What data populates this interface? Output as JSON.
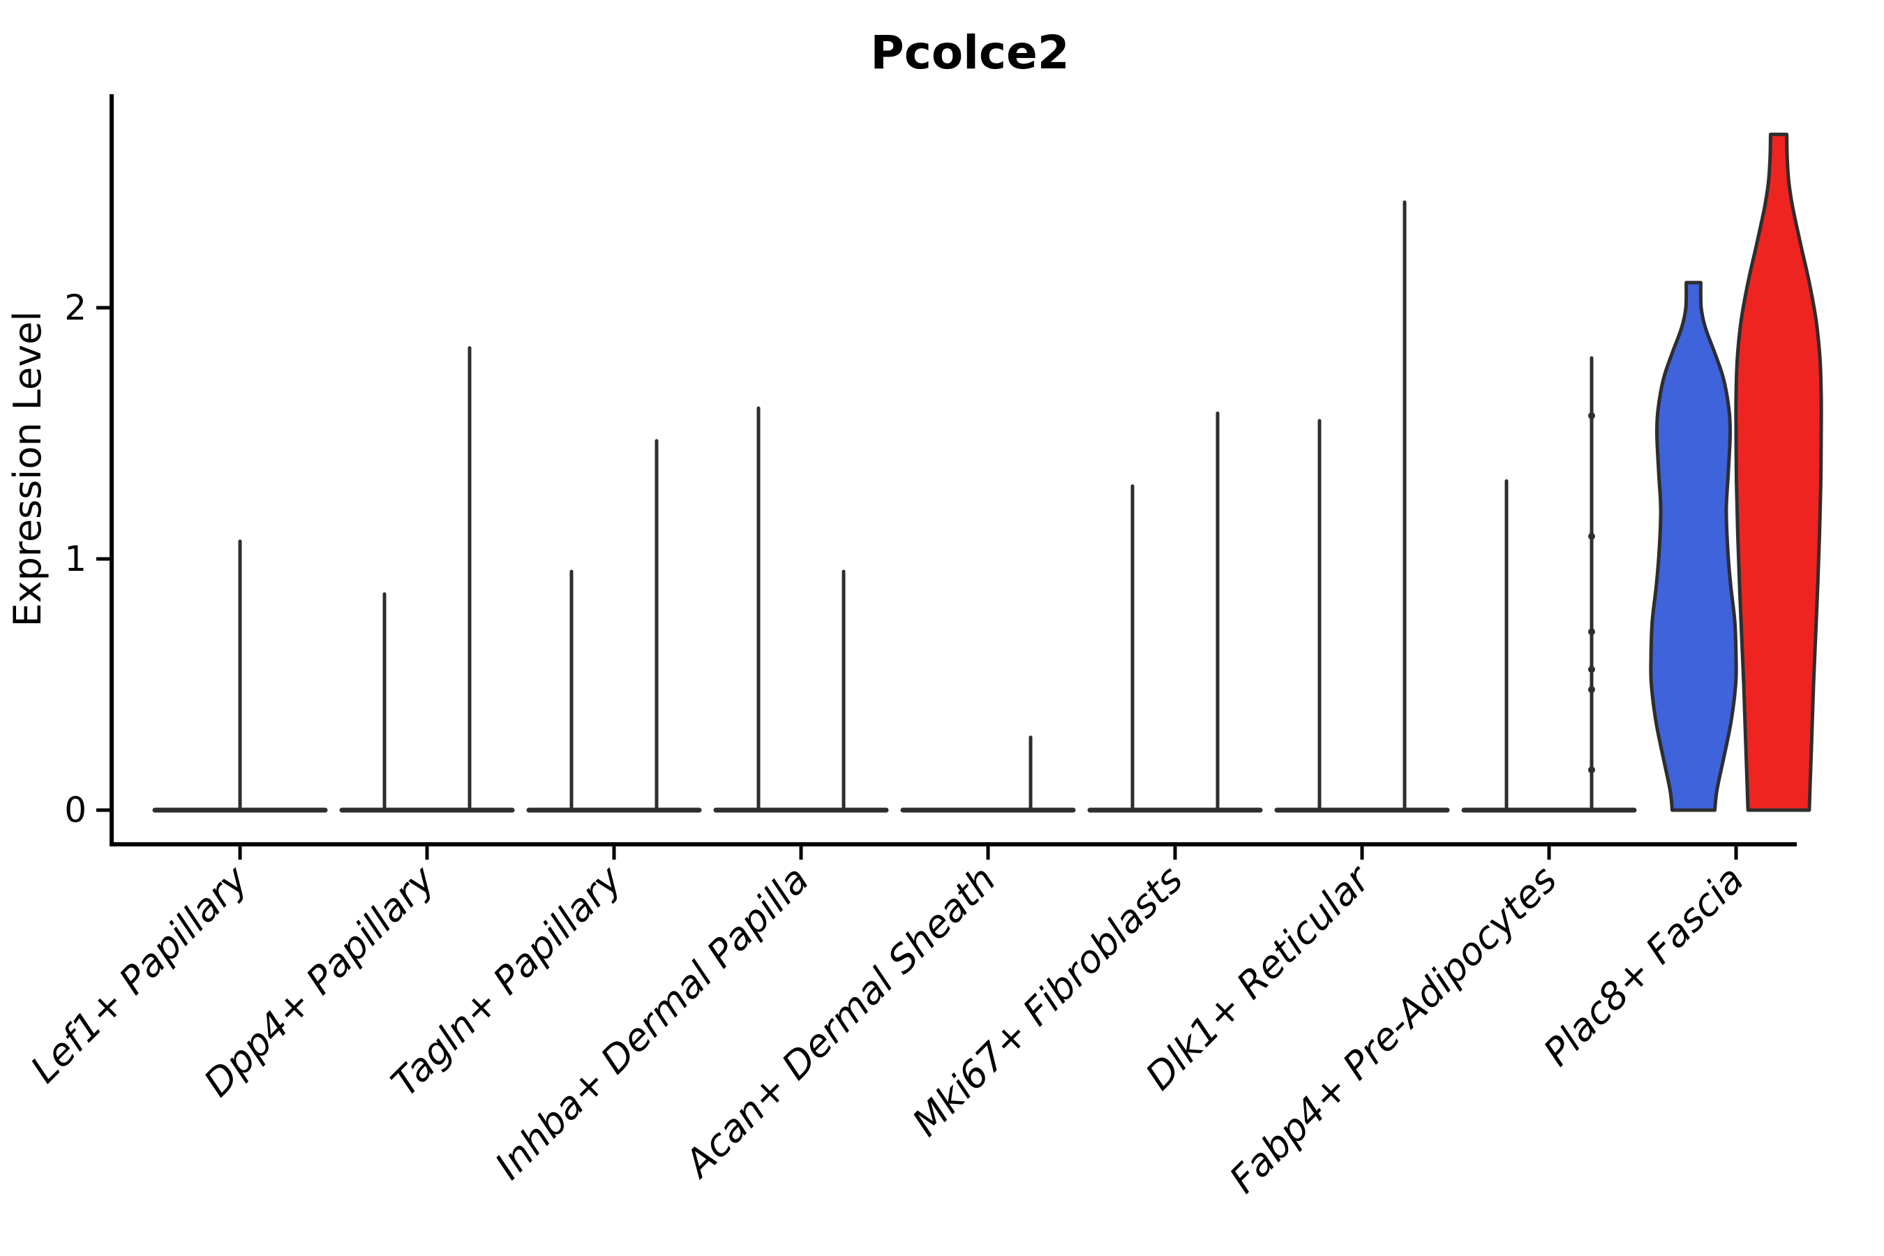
{
  "chart_data": {
    "type": "violin",
    "title": "Pcolce2",
    "ylabel": "Expression Level",
    "xlabel": "",
    "yticks": [
      0,
      1,
      2
    ],
    "ylim": [
      -0.14,
      2.85
    ],
    "grid": false,
    "legend": null,
    "xtick_style": "italic, rotated 45deg, right-anchored",
    "categories": [
      "Lef1+ Papillary",
      "Dpp4+ Papillary",
      "Tagln+ Papillary",
      "Inhba+ Dermal Papilla",
      "Acan+ Dermal Sheath",
      "Mki67+ Fibroblasts",
      "Dlk1+ Reticular",
      "Fabp4+ Pre-Adipocytes",
      "Plac8+ Fascia"
    ],
    "series": [
      {
        "category": "Lef1+ Papillary",
        "violins": [
          {
            "slot": "center",
            "shape": "spike",
            "max": 1.07,
            "fill": "none"
          }
        ]
      },
      {
        "category": "Dpp4+ Papillary",
        "violins": [
          {
            "slot": "left",
            "shape": "spike",
            "max": 0.86,
            "fill": "none"
          },
          {
            "slot": "right",
            "shape": "spike",
            "max": 1.84,
            "fill": "none"
          }
        ]
      },
      {
        "category": "Tagln+ Papillary",
        "violins": [
          {
            "slot": "left",
            "shape": "spike",
            "max": 0.95,
            "fill": "none"
          },
          {
            "slot": "right",
            "shape": "spike",
            "max": 1.47,
            "fill": "none"
          }
        ]
      },
      {
        "category": "Inhba+ Dermal Papilla",
        "violins": [
          {
            "slot": "left",
            "shape": "spike",
            "max": 1.6,
            "fill": "none"
          },
          {
            "slot": "right",
            "shape": "spike",
            "max": 0.95,
            "fill": "none"
          }
        ]
      },
      {
        "category": "Acan+ Dermal Sheath",
        "violins": [
          {
            "slot": "left",
            "shape": "spike",
            "max": 0.0,
            "fill": "none"
          },
          {
            "slot": "right",
            "shape": "spike",
            "max": 0.29,
            "fill": "none"
          }
        ]
      },
      {
        "category": "Mki67+ Fibroblasts",
        "violins": [
          {
            "slot": "left",
            "shape": "spike",
            "max": 1.29,
            "fill": "none"
          },
          {
            "slot": "right",
            "shape": "spike",
            "max": 1.58,
            "fill": "none"
          }
        ]
      },
      {
        "category": "Dlk1+ Reticular",
        "violins": [
          {
            "slot": "left",
            "shape": "spike",
            "max": 1.55,
            "fill": "none"
          },
          {
            "slot": "right",
            "shape": "spike",
            "max": 2.42,
            "fill": "none"
          }
        ]
      },
      {
        "category": "Fabp4+ Pre-Adipocytes",
        "violins": [
          {
            "slot": "left",
            "shape": "spike",
            "max": 1.31,
            "fill": "none"
          },
          {
            "slot": "right",
            "shape": "spike",
            "max": 1.8,
            "fill": "none",
            "beads": [
              0.16,
              0.48,
              0.56,
              0.71,
              1.09,
              1.57
            ]
          }
        ]
      },
      {
        "category": "Plac8+ Fascia",
        "violins": [
          {
            "slot": "left",
            "shape": "kde",
            "max": 2.1,
            "fill": "#3E63DB",
            "profile": [
              [
                0.0,
                0.5
              ],
              [
                0.08,
                0.55
              ],
              [
                0.2,
                0.7
              ],
              [
                0.35,
                0.88
              ],
              [
                0.5,
                0.99
              ],
              [
                0.6,
                1.0
              ],
              [
                0.75,
                0.97
              ],
              [
                0.9,
                0.87
              ],
              [
                1.05,
                0.8
              ],
              [
                1.2,
                0.77
              ],
              [
                1.35,
                0.82
              ],
              [
                1.5,
                0.86
              ],
              [
                1.6,
                0.83
              ],
              [
                1.72,
                0.7
              ],
              [
                1.82,
                0.5
              ],
              [
                1.92,
                0.28
              ],
              [
                2.0,
                0.18
              ],
              [
                2.1,
                0.17
              ]
            ]
          },
          {
            "slot": "right",
            "shape": "kde",
            "max": 2.69,
            "fill": "#EF2420",
            "profile": [
              [
                0.0,
                0.72
              ],
              [
                0.1,
                0.74
              ],
              [
                0.3,
                0.78
              ],
              [
                0.5,
                0.82
              ],
              [
                0.7,
                0.87
              ],
              [
                0.9,
                0.92
              ],
              [
                1.1,
                0.96
              ],
              [
                1.3,
                0.99
              ],
              [
                1.5,
                1.0
              ],
              [
                1.65,
                1.0
              ],
              [
                1.8,
                0.97
              ],
              [
                1.95,
                0.88
              ],
              [
                2.1,
                0.72
              ],
              [
                2.25,
                0.52
              ],
              [
                2.4,
                0.33
              ],
              [
                2.5,
                0.24
              ],
              [
                2.6,
                0.2
              ],
              [
                2.69,
                0.19
              ]
            ]
          }
        ]
      }
    ],
    "colors": {
      "violin_line": "#2E2E2E",
      "axis": "#000000",
      "text": "#000000",
      "blue_fill": "#3E63DB",
      "red_fill": "#EF2420",
      "background": "#FFFFFF"
    }
  }
}
